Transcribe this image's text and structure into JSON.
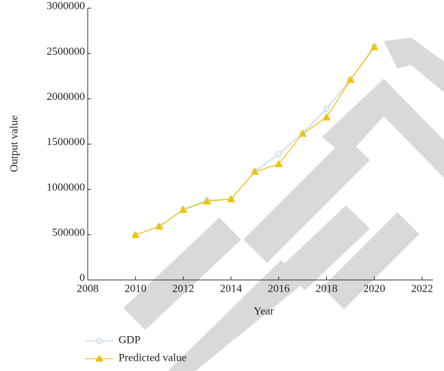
{
  "chart_data": {
    "type": "line",
    "x_label": "Year",
    "y_label": "Output value",
    "x": [
      2010,
      2011,
      2012,
      2013,
      2014,
      2015,
      2016,
      2017,
      2018,
      2019,
      2020
    ],
    "series": [
      {
        "name": "GDP",
        "color": "#b9d5ee",
        "marker": "circle",
        "values": [
          497000,
          590000,
          780000,
          880000,
          890000,
          1200000,
          1390000,
          1620000,
          1890000,
          2210000,
          2580000
        ]
      },
      {
        "name": "Predicted value",
        "color": "#f2c200",
        "marker": "triangle",
        "values": [
          497000,
          590000,
          775000,
          868000,
          893000,
          1195000,
          1280000,
          1615000,
          1795000,
          2210000,
          2570000
        ]
      }
    ],
    "xlim": [
      2008,
      2022
    ],
    "xticks": [
      2008,
      2010,
      2012,
      2014,
      2016,
      2018,
      2020,
      2022
    ],
    "ylim": [
      0,
      3000000
    ],
    "yticks": [
      0,
      500000,
      1000000,
      1500000,
      2000000,
      2500000,
      3000000
    ],
    "grid": false
  }
}
